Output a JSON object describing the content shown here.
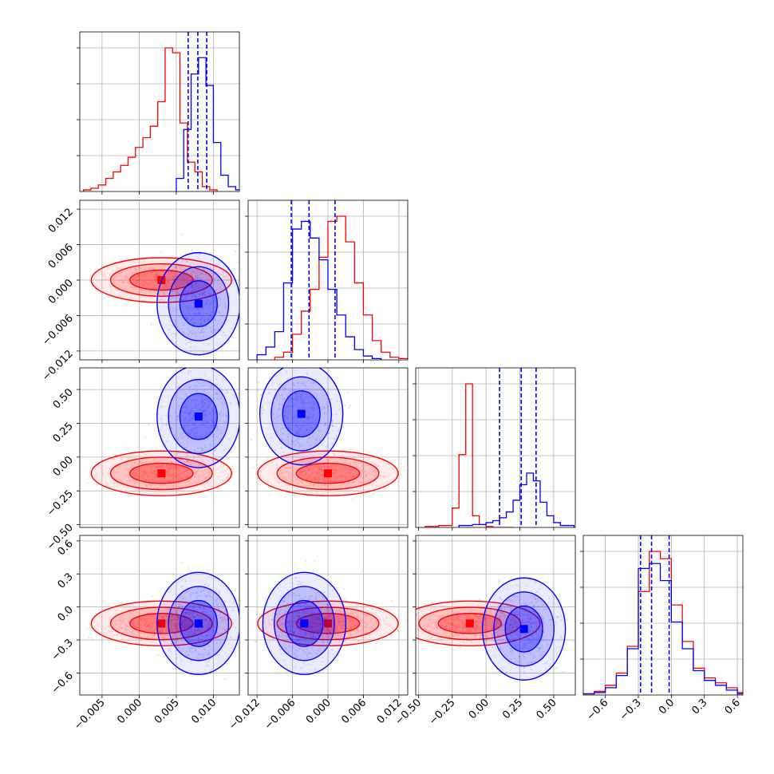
{
  "chart_data": {
    "type": "corner",
    "title": "",
    "grid": true,
    "n_params": 4,
    "series": [
      {
        "color": "#ff0000",
        "marginals": [
          {
            "bins": [
              -0.0075,
              -0.0065,
              -0.0055,
              -0.0045,
              -0.0035,
              -0.0025,
              -0.0015,
              -0.0005,
              0.0005,
              0.0015,
              0.0025,
              0.0035,
              0.0045,
              0.0055,
              0.0065,
              0.0075,
              0.0085,
              0.0095
            ],
            "values": [
              1,
              2,
              4,
              8,
              12,
              16,
              21,
              27,
              33,
              40,
              55,
              88,
              85,
              42,
              18,
              12,
              3,
              1
            ]
          },
          {
            "bins": [
              -0.009,
              -0.0075,
              -0.006,
              -0.0045,
              -0.003,
              -0.0015,
              0.0,
              0.0015,
              0.003,
              0.0045,
              0.006,
              0.0075,
              0.009,
              0.0105,
              0.012
            ],
            "values": [
              2,
              6,
              20,
              38,
              55,
              80,
              108,
              112,
              92,
              60,
              35,
              15,
              6,
              2,
              1
            ]
          },
          {
            "bins": [
              -0.45,
              -0.35,
              -0.25,
              -0.2,
              -0.15,
              -0.1,
              -0.05,
              0.0,
              0.05,
              0.1
            ],
            "values": [
              1,
              2,
              20,
              75,
              148,
              12,
              3,
              1,
              0,
              0
            ]
          },
          {
            "bins": [
              -0.8,
              -0.7,
              -0.6,
              -0.5,
              -0.4,
              -0.3,
              -0.2,
              -0.1,
              0.0,
              0.1,
              0.2,
              0.3,
              0.4,
              0.5,
              0.6
            ],
            "values": [
              1,
              3,
              8,
              18,
              40,
              85,
              118,
              112,
              74,
              44,
              22,
              14,
              10,
              6,
              2
            ]
          }
        ],
        "scatter_centers": [
          {
            "pair": [
              0,
              1
            ],
            "x": 0.003,
            "y": 0.0
          },
          {
            "pair": [
              0,
              2
            ],
            "x": 0.003,
            "y": -0.12
          },
          {
            "pair": [
              1,
              2
            ],
            "x": 0.0,
            "y": -0.12
          },
          {
            "pair": [
              0,
              3
            ],
            "x": 0.003,
            "y": -0.15
          },
          {
            "pair": [
              1,
              3
            ],
            "x": 0.0,
            "y": -0.15
          },
          {
            "pair": [
              2,
              3
            ],
            "x": -0.12,
            "y": -0.15
          }
        ]
      },
      {
        "color": "#0000ff",
        "marginals": [
          {
            "bins": [
              0.005,
              0.006,
              0.007,
              0.008,
              0.009,
              0.01,
              0.011,
              0.012,
              0.013
            ],
            "values": [
              8,
              38,
              72,
              82,
              65,
              30,
              10,
              3,
              1
            ]
          },
          {
            "bins": [
              -0.012,
              -0.0105,
              -0.009,
              -0.0075,
              -0.006,
              -0.0045,
              -0.003,
              -0.0015,
              0.0,
              0.0015,
              0.003,
              0.0045,
              0.006,
              0.0075
            ],
            "values": [
              4,
              10,
              22,
              60,
              102,
              108,
              95,
              78,
              55,
              35,
              18,
              8,
              3,
              1
            ]
          },
          {
            "bins": [
              -0.2,
              -0.1,
              0.0,
              0.05,
              0.1,
              0.15,
              0.2,
              0.25,
              0.3,
              0.35,
              0.4,
              0.45,
              0.5,
              0.55
            ],
            "values": [
              2,
              3,
              5,
              7,
              10,
              16,
              28,
              44,
              56,
              48,
              26,
              12,
              5,
              2
            ]
          },
          {
            "bins": [
              -0.8,
              -0.7,
              -0.6,
              -0.5,
              -0.4,
              -0.3,
              -0.2,
              -0.1,
              0.0,
              0.1,
              0.2,
              0.3,
              0.4,
              0.5,
              0.6
            ],
            "values": [
              1,
              2,
              6,
              16,
              38,
              104,
              108,
              94,
              60,
              38,
              20,
              12,
              8,
              4,
              1
            ]
          }
        ],
        "scatter_centers": [
          {
            "pair": [
              0,
              1
            ],
            "x": 0.008,
            "y": -0.004
          },
          {
            "pair": [
              0,
              2
            ],
            "x": 0.008,
            "y": 0.3
          },
          {
            "pair": [
              1,
              2
            ],
            "x": -0.0045,
            "y": 0.32
          },
          {
            "pair": [
              0,
              3
            ],
            "x": 0.008,
            "y": -0.15
          },
          {
            "pair": [
              1,
              3
            ],
            "x": -0.004,
            "y": -0.15
          },
          {
            "pair": [
              2,
              3
            ],
            "x": 0.28,
            "y": -0.2
          }
        ]
      }
    ],
    "quantile_lines": [
      [
        0.0066,
        0.0079,
        0.0091
      ],
      [
        -0.0062,
        -0.0032,
        0.0012
      ],
      [
        0.1,
        0.26,
        0.37
      ],
      [
        -0.28,
        -0.18,
        -0.02
      ]
    ],
    "ranges": [
      [
        -0.008,
        0.0135
      ],
      [
        -0.0135,
        0.0135
      ],
      [
        -0.52,
        0.66
      ],
      [
        -0.8,
        0.65
      ]
    ],
    "ticks": [
      {
        "values": [
          -0.005,
          0.0,
          0.005,
          0.01
        ],
        "labels": [
          "−0.005",
          "0.000",
          "0.005",
          "0.010"
        ]
      },
      {
        "values": [
          -0.012,
          -0.006,
          0.0,
          0.006,
          0.012
        ],
        "labels": [
          "−0.012",
          "−0.006",
          "0.000",
          "0.006",
          "0.012"
        ]
      },
      {
        "values": [
          -0.5,
          -0.25,
          0.0,
          0.25,
          0.5
        ],
        "labels": [
          "−0.50",
          "−0.25",
          "0.00",
          "0.25",
          "0.50"
        ]
      },
      {
        "values": [
          -0.6,
          -0.3,
          0.0,
          0.3,
          0.6
        ],
        "labels": [
          "−0.6",
          "−0.3",
          "0.0",
          "0.3",
          "0.6"
        ]
      }
    ]
  }
}
